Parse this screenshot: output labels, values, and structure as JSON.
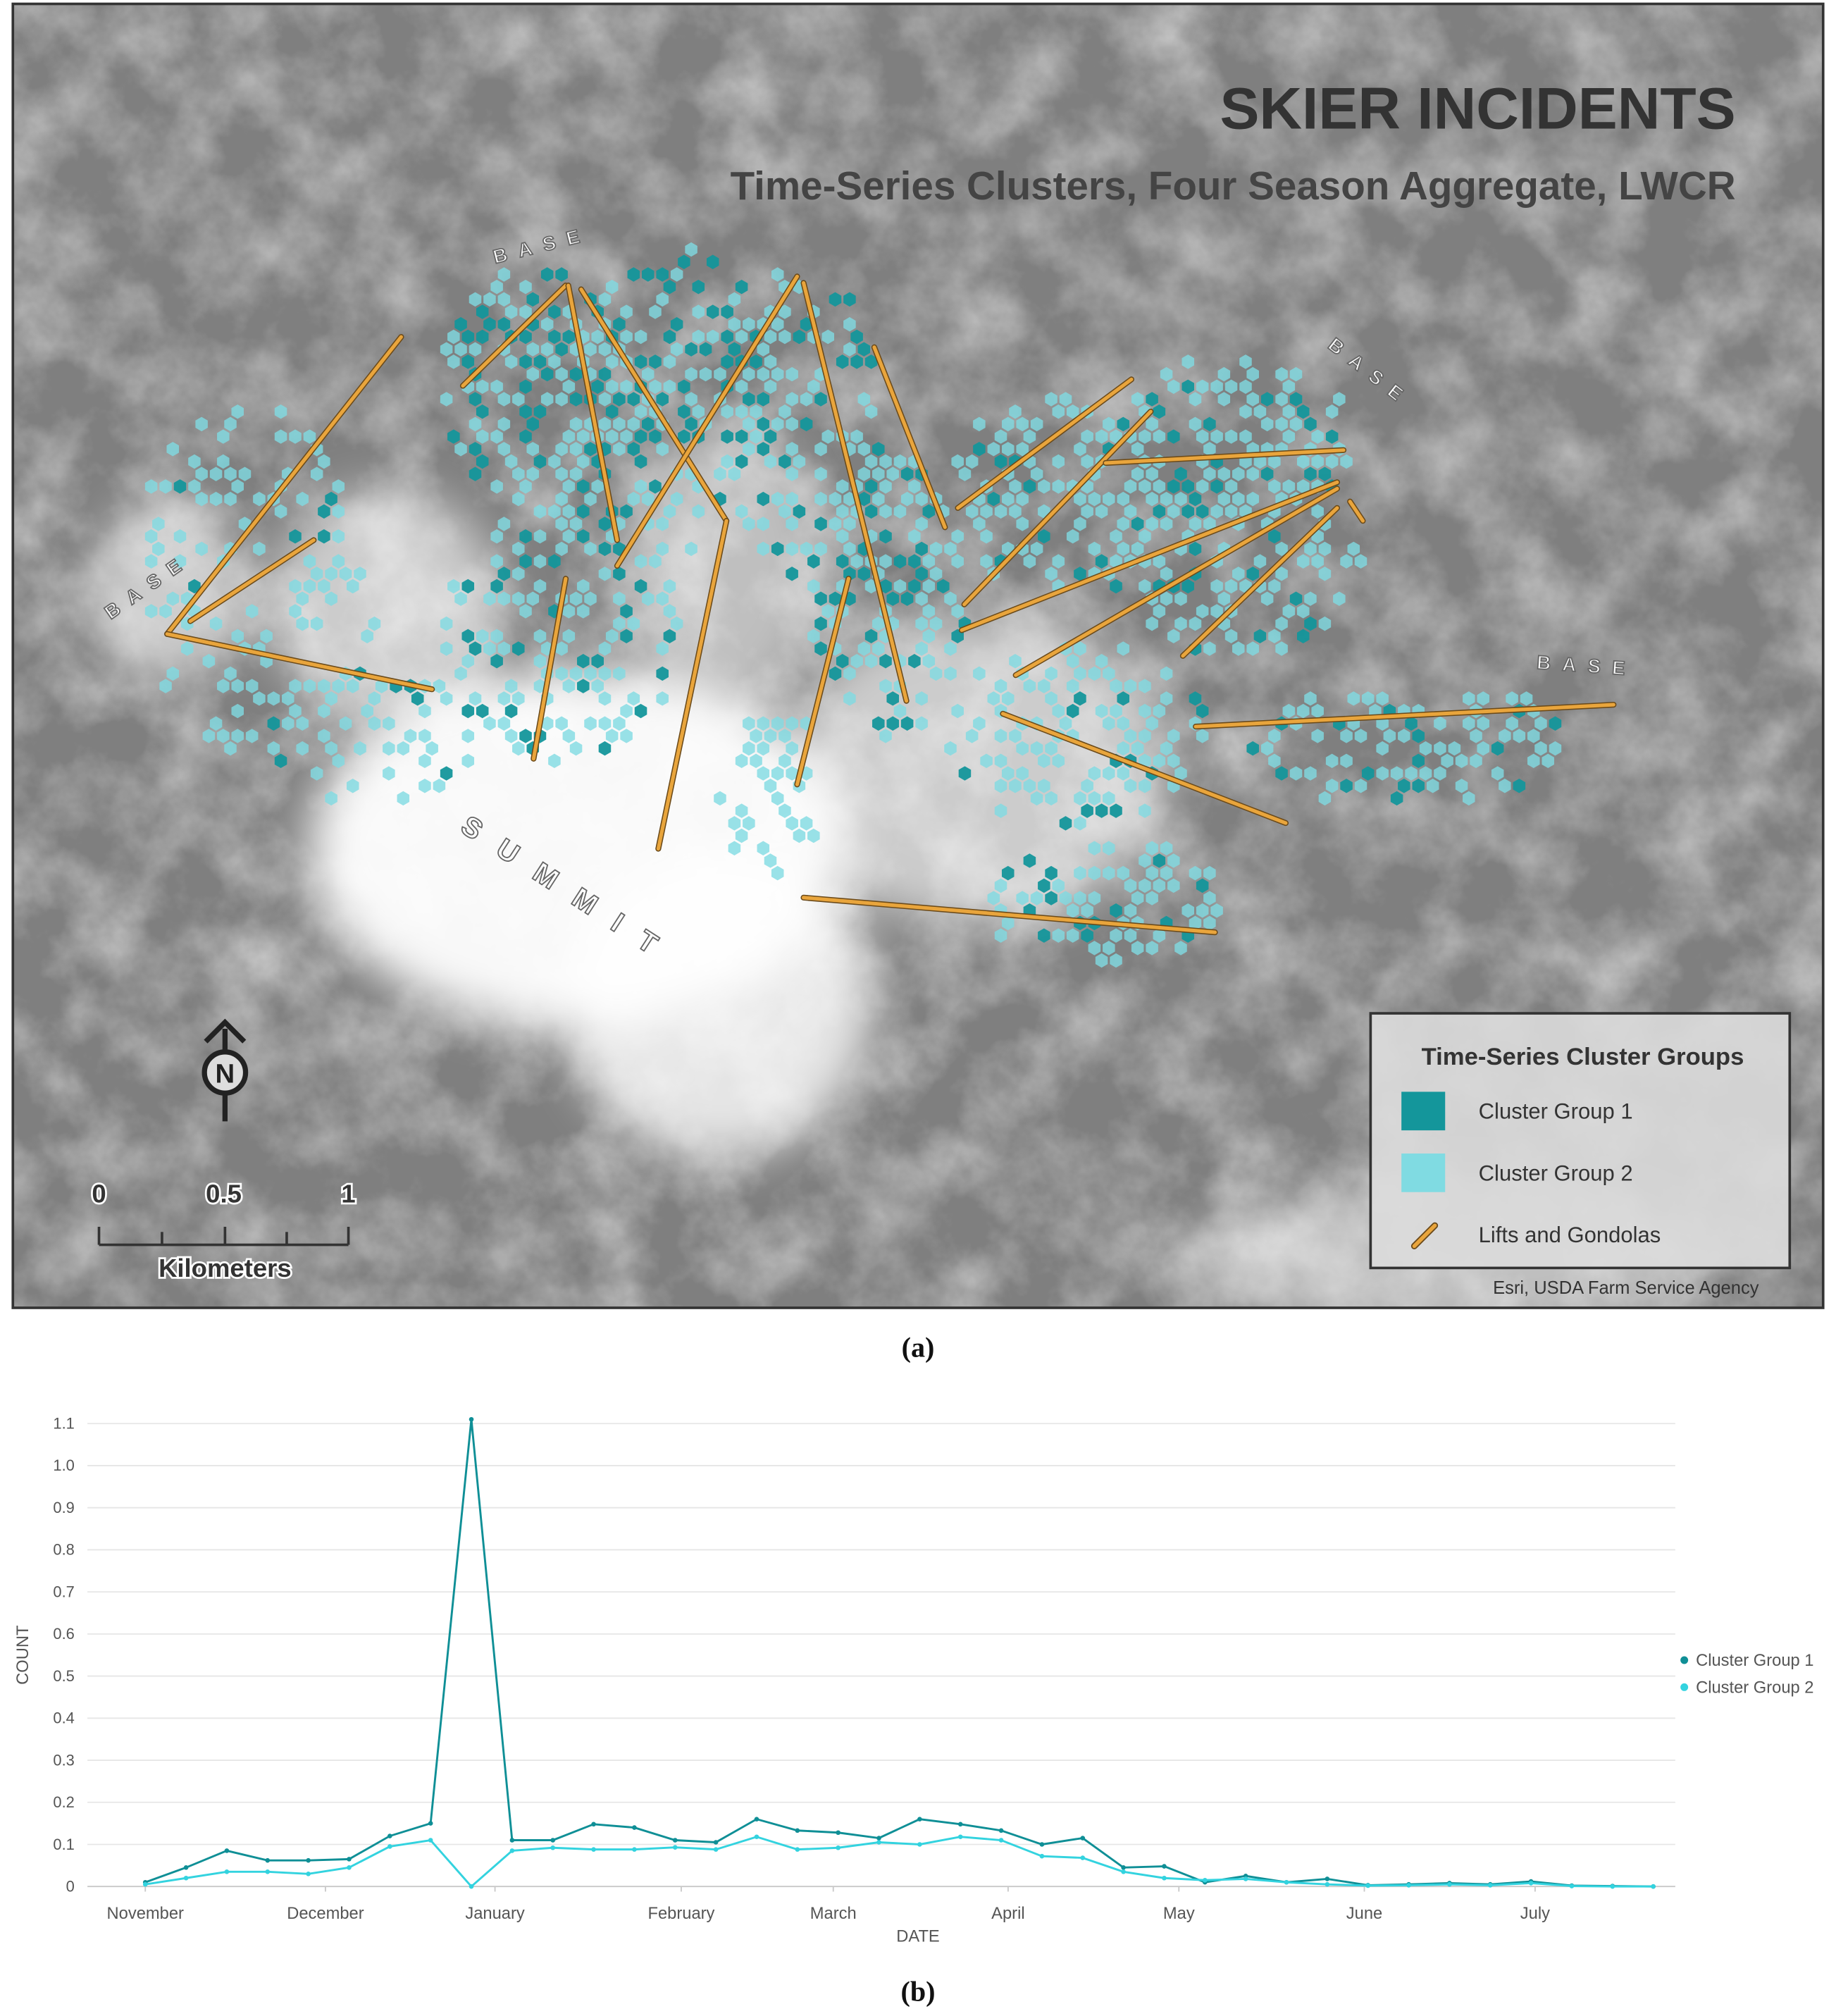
{
  "map": {
    "title": "SKIER INCIDENTS",
    "subtitle": "Time-Series Clusters, Four Season Aggregate, LWCR",
    "bases": [
      "BASE",
      "BASE",
      "BASE",
      "BASE"
    ],
    "summit": "SUMMIT",
    "north": "N",
    "legend": {
      "title": "Time-Series Cluster Groups",
      "items": [
        {
          "label": "Cluster Group 1",
          "color": "#14969b"
        },
        {
          "label": "Cluster Group 2",
          "color": "#80dbe2"
        },
        {
          "label": "Lifts and Gondolas",
          "color": "#e9a53c"
        }
      ]
    },
    "scale": {
      "ticks": [
        0,
        0.5,
        1
      ],
      "unit": "Kilometers"
    },
    "credit": "Esri, USDA Farm Service Agency"
  },
  "captions": [
    "(a)",
    "(b)"
  ],
  "chart_data": {
    "type": "line",
    "x_label": "DATE",
    "y_label": "COUNT",
    "x": [
      0,
      1,
      2,
      3,
      4,
      5,
      6,
      7,
      8,
      9,
      10,
      11,
      12,
      13,
      14,
      15,
      16,
      17,
      18,
      19,
      20,
      21,
      22,
      23,
      24,
      25,
      26,
      27,
      28,
      29,
      30,
      31,
      32,
      33,
      34,
      35,
      36,
      37
    ],
    "xlim": [
      -1.42,
      37.54
    ],
    "xticks": [
      {
        "value": 0,
        "label": "November"
      },
      {
        "value": 4.42,
        "label": "December"
      },
      {
        "value": 8.58,
        "label": "January"
      },
      {
        "value": 13.15,
        "label": "February"
      },
      {
        "value": 16.88,
        "label": "March"
      },
      {
        "value": 21.17,
        "label": "April"
      },
      {
        "value": 25.36,
        "label": "May"
      },
      {
        "value": 29.91,
        "label": "June"
      },
      {
        "value": 34.1,
        "label": "July"
      }
    ],
    "ylim": [
      0,
      1.1
    ],
    "yticks": [
      0,
      0.1,
      0.2,
      0.3,
      0.4,
      0.5,
      0.6,
      0.7,
      0.8,
      0.9,
      {
        "value": 1,
        "label": "1.0"
      },
      1.1
    ],
    "grid": true,
    "series": [
      {
        "name": "Cluster Group 1",
        "color": "#0f8f96",
        "values": [
          0.01,
          0.045,
          0.085,
          0.062,
          0.062,
          0.065,
          0.12,
          0.15,
          1.11,
          0.11,
          0.11,
          0.148,
          0.14,
          0.11,
          0.105,
          0.16,
          0.133,
          0.128,
          0.115,
          0.16,
          0.148,
          0.133,
          0.1,
          0.115,
          0.045,
          0.048,
          0.01,
          0.025,
          0.01,
          0.018,
          0.003,
          0.005,
          0.008,
          0.005,
          0.012,
          0.002,
          0.001,
          0
        ]
      },
      {
        "name": "Cluster Group 2",
        "color": "#33d3df",
        "values": [
          0.005,
          0.02,
          0.035,
          0.035,
          0.03,
          0.045,
          0.095,
          0.11,
          0,
          0.085,
          0.092,
          0.088,
          0.088,
          0.093,
          0.088,
          0.118,
          0.088,
          0.092,
          0.105,
          0.1,
          0.118,
          0.11,
          0.072,
          0.068,
          0.035,
          0.02,
          0.015,
          0.018,
          0.01,
          0.005,
          0.002,
          0.003,
          0.005,
          0.003,
          0.008,
          0.001,
          0,
          0
        ]
      }
    ]
  }
}
